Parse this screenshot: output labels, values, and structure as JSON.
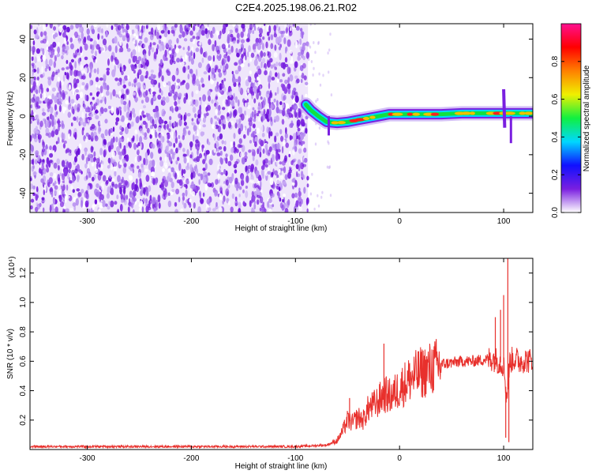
{
  "title": "C2E4.2025.198.06.21.R02",
  "chart_data": [
    {
      "type": "heatmap",
      "title": "C2E4.2025.198.06.21.R02",
      "xlabel": "Height of straight line (km)",
      "ylabel": "Frequency (Hz)",
      "xlim": [
        -355,
        128
      ],
      "ylim": [
        -50,
        48
      ],
      "x_ticks": [
        -300,
        -200,
        -100,
        0,
        100
      ],
      "y_ticks": [
        -40,
        -20,
        0,
        20,
        40
      ],
      "noise_region": {
        "x": [
          -355,
          -88
        ],
        "y": [
          -50,
          48
        ]
      },
      "ridge": [
        {
          "x": -90,
          "freq": 6
        },
        {
          "x": -85,
          "freq": 3
        },
        {
          "x": -78,
          "freq": 0
        },
        {
          "x": -70,
          "freq": -3
        },
        {
          "x": -60,
          "freq": -3.5
        },
        {
          "x": -50,
          "freq": -3
        },
        {
          "x": -40,
          "freq": -2
        },
        {
          "x": -30,
          "freq": -1
        },
        {
          "x": -20,
          "freq": 0
        },
        {
          "x": -10,
          "freq": 1
        },
        {
          "x": 0,
          "freq": 1
        },
        {
          "x": 20,
          "freq": 1
        },
        {
          "x": 40,
          "freq": 1
        },
        {
          "x": 60,
          "freq": 1.5
        },
        {
          "x": 80,
          "freq": 1.5
        },
        {
          "x": 100,
          "freq": 1.5
        },
        {
          "x": 110,
          "freq": 1.5
        },
        {
          "x": 128,
          "freq": 1.5
        }
      ],
      "colorbar": {
        "label": "Normalized spectral amplitude",
        "ticks": [
          0.0,
          0.2,
          0.4,
          0.6,
          0.8
        ],
        "range": [
          0,
          1
        ],
        "colors": [
          "#ffffff",
          "#7a1fe0",
          "#1010ff",
          "#00d8ff",
          "#10f040",
          "#f0f000",
          "#ff8000",
          "#ff0000",
          "#ff1090"
        ]
      }
    },
    {
      "type": "line",
      "xlabel": "Height of straight line (km)",
      "ylabel": "SNR (10 * v/v)",
      "y_multiplier": "(x10⁴)",
      "xlim": [
        -355,
        128
      ],
      "ylim": [
        0,
        1.3
      ],
      "x_ticks": [
        -300,
        -200,
        -100,
        0,
        100
      ],
      "y_ticks": [
        0.2,
        0.4,
        0.6,
        0.8,
        1.0,
        1.2
      ],
      "color": "#e8302c",
      "series": [
        {
          "x": [
            -355,
            -300,
            -200,
            -100,
            -70,
            -60,
            -55,
            -50,
            -45,
            -40,
            -35,
            -30,
            -25,
            -20,
            -15,
            -10,
            -5,
            0,
            10,
            20,
            30,
            40,
            50,
            60,
            70,
            80,
            90,
            95,
            100,
            103,
            106,
            110,
            115,
            120,
            128
          ],
          "values": [
            0.02,
            0.02,
            0.02,
            0.02,
            0.03,
            0.06,
            0.12,
            0.2,
            0.18,
            0.22,
            0.2,
            0.28,
            0.3,
            0.33,
            0.38,
            0.36,
            0.38,
            0.42,
            0.48,
            0.52,
            0.55,
            0.58,
            0.59,
            0.6,
            0.6,
            0.61,
            0.62,
            0.6,
            0.58,
            0.35,
            0.6,
            0.62,
            0.6,
            0.61,
            0.6
          ]
        }
      ],
      "spikes": [
        {
          "x": -15,
          "value": 0.72
        },
        {
          "x": -48,
          "value": 0.35
        },
        {
          "x": 92,
          "value": 0.9
        },
        {
          "x": 97,
          "value": 0.95
        },
        {
          "x": 100,
          "value": 1.05
        },
        {
          "x": 104,
          "value": 1.3
        },
        {
          "x": 105,
          "value": 0.05
        },
        {
          "x": 102,
          "value": 0.08
        }
      ]
    }
  ]
}
